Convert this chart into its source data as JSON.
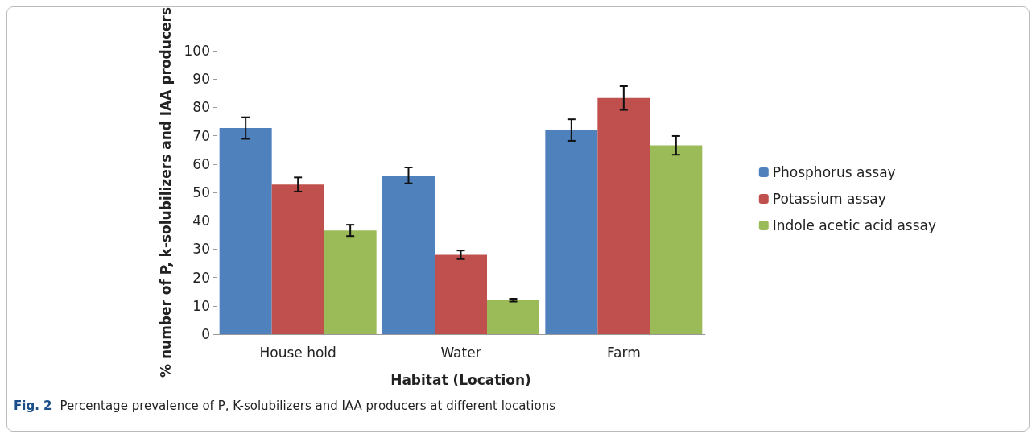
{
  "chart_data": {
    "type": "bar",
    "xlabel": "Habitat (Location)",
    "ylabel": "% number of P, k-solubilizers and IAA producers",
    "categories": [
      "House hold",
      "Water",
      "Farm"
    ],
    "series": [
      {
        "name": "Phosphorus assay",
        "color": "#4f81bd",
        "values": [
          72.7,
          56,
          72
        ],
        "errors": [
          3.8,
          2.8,
          3.8
        ]
      },
      {
        "name": "Potassium assay",
        "color": "#c0504d",
        "values": [
          52.8,
          28,
          83.3
        ],
        "errors": [
          2.5,
          1.5,
          4.2
        ]
      },
      {
        "name": "Indole acetic acid assay",
        "color": "#9bbb59",
        "values": [
          36.6,
          12,
          66.6
        ],
        "errors": [
          2,
          0.5,
          3.3
        ]
      }
    ],
    "ylim": [
      0,
      100
    ],
    "yticks": [
      0,
      10,
      20,
      30,
      40,
      50,
      60,
      70,
      80,
      90,
      100
    ],
    "grid": false,
    "legend": "right",
    "annotations": [
      "Fig. 2",
      "Percentage prevalence of P, K-solubilizers and IAA producers at different locations"
    ]
  }
}
